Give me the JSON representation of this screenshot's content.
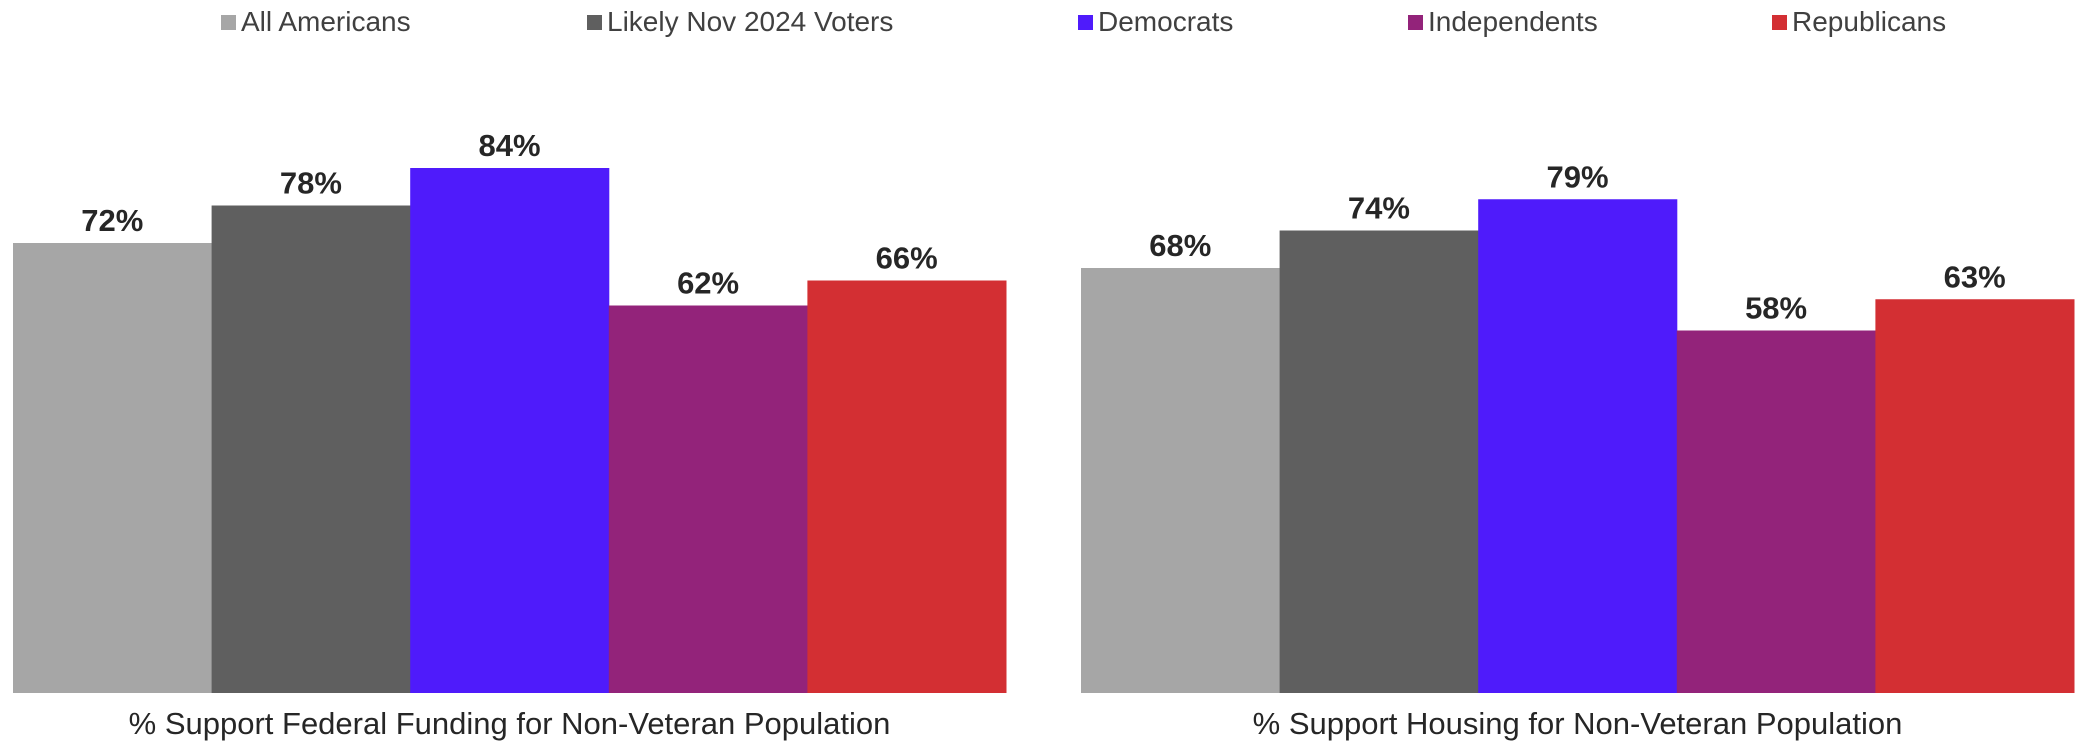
{
  "chart_data": {
    "type": "bar",
    "categories": [
      "% Support Federal Funding for Non-Veteran Population",
      "% Support Housing for Non-Veteran Population"
    ],
    "ylim": [
      0,
      100
    ],
    "grid": false,
    "legend_position": "top",
    "value_suffix": "%",
    "series": [
      {
        "name": "All Americans",
        "color": "#A6A6A6",
        "values": [
          72,
          68
        ]
      },
      {
        "name": "Likely Nov 2024 Voters",
        "color": "#5F5F5F",
        "values": [
          78,
          74
        ]
      },
      {
        "name": "Democrats",
        "color": "#4F1BFB",
        "values": [
          84,
          79
        ]
      },
      {
        "name": "Independents",
        "color": "#93237A",
        "values": [
          62,
          58
        ]
      },
      {
        "name": "Republicans",
        "color": "#D32F33",
        "values": [
          66,
          63
        ]
      }
    ]
  }
}
